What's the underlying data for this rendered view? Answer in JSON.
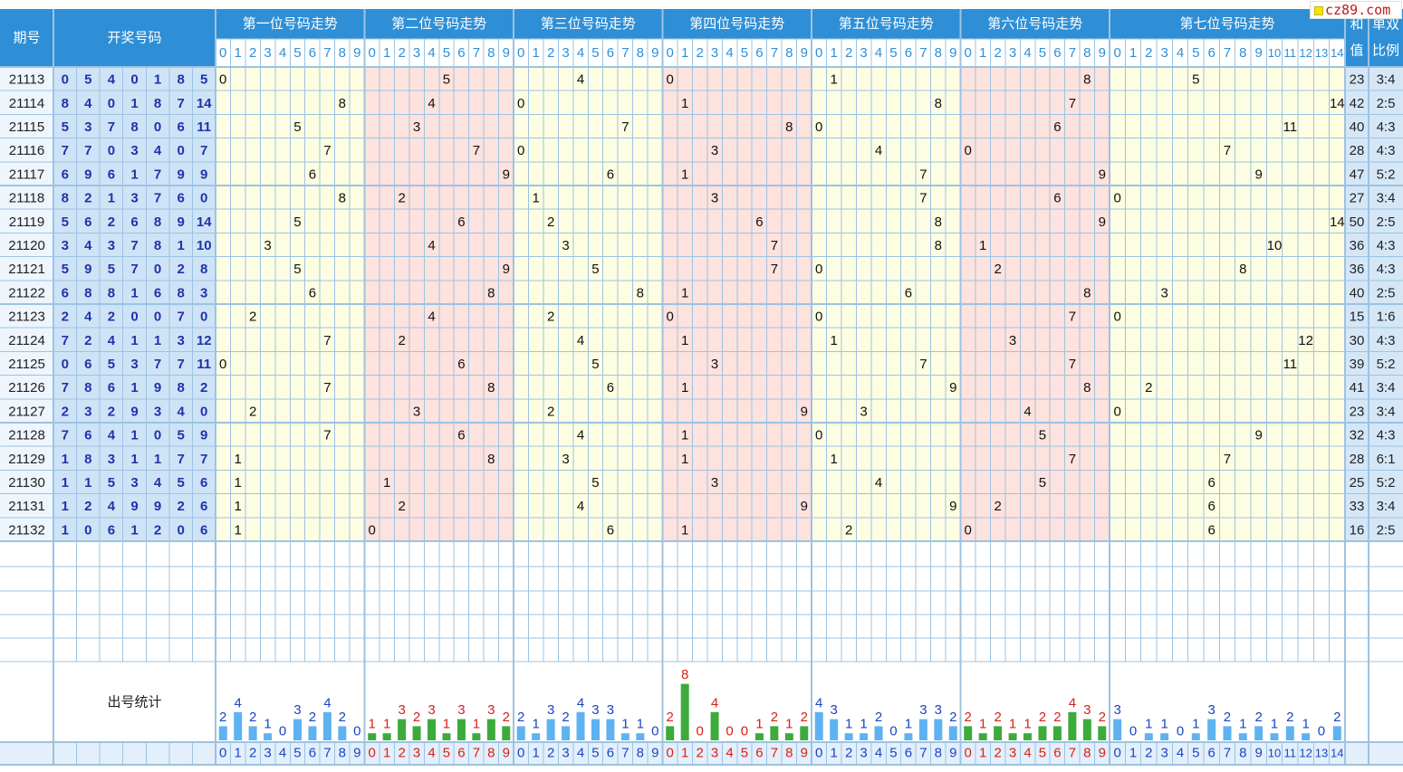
{
  "header": {
    "period": "期号",
    "numbers": "开奖号码",
    "sum": "和值",
    "ratio": "单双比例",
    "stats": "出号统计"
  },
  "chart_data": {
    "type": "table",
    "positions": [
      {
        "title": "第一位号码走势",
        "digits": 10
      },
      {
        "title": "第二位号码走势",
        "digits": 10
      },
      {
        "title": "第三位号码走势",
        "digits": 10
      },
      {
        "title": "第四位号码走势",
        "digits": 10
      },
      {
        "title": "第五位号码走势",
        "digits": 10
      },
      {
        "title": "第六位号码走势",
        "digits": 10
      },
      {
        "title": "第七位号码走势",
        "digits": 15
      }
    ],
    "rows": [
      {
        "period": "21113",
        "numbers": [
          0,
          5,
          4,
          0,
          1,
          8,
          5
        ],
        "sum": "23",
        "ratio": "3:4"
      },
      {
        "period": "21114",
        "numbers": [
          8,
          4,
          0,
          1,
          8,
          7,
          14
        ],
        "sum": "42",
        "ratio": "2:5"
      },
      {
        "period": "21115",
        "numbers": [
          5,
          3,
          7,
          8,
          0,
          6,
          11
        ],
        "sum": "40",
        "ratio": "4:3"
      },
      {
        "period": "21116",
        "numbers": [
          7,
          7,
          0,
          3,
          4,
          0,
          7
        ],
        "sum": "28",
        "ratio": "4:3"
      },
      {
        "period": "21117",
        "numbers": [
          6,
          9,
          6,
          1,
          7,
          9,
          9
        ],
        "sum": "47",
        "ratio": "5:2"
      },
      {
        "period": "21118",
        "numbers": [
          8,
          2,
          1,
          3,
          7,
          6,
          0
        ],
        "sum": "27",
        "ratio": "3:4"
      },
      {
        "period": "21119",
        "numbers": [
          5,
          6,
          2,
          6,
          8,
          9,
          14
        ],
        "sum": "50",
        "ratio": "2:5"
      },
      {
        "period": "21120",
        "numbers": [
          3,
          4,
          3,
          7,
          8,
          1,
          10
        ],
        "sum": "36",
        "ratio": "4:3"
      },
      {
        "period": "21121",
        "numbers": [
          5,
          9,
          5,
          7,
          0,
          2,
          8
        ],
        "sum": "36",
        "ratio": "4:3"
      },
      {
        "period": "21122",
        "numbers": [
          6,
          8,
          8,
          1,
          6,
          8,
          3
        ],
        "sum": "40",
        "ratio": "2:5"
      },
      {
        "period": "21123",
        "numbers": [
          2,
          4,
          2,
          0,
          0,
          7,
          0
        ],
        "sum": "15",
        "ratio": "1:6"
      },
      {
        "period": "21124",
        "numbers": [
          7,
          2,
          4,
          1,
          1,
          3,
          12
        ],
        "sum": "30",
        "ratio": "4:3"
      },
      {
        "period": "21125",
        "numbers": [
          0,
          6,
          5,
          3,
          7,
          7,
          11
        ],
        "sum": "39",
        "ratio": "5:2"
      },
      {
        "period": "21126",
        "numbers": [
          7,
          8,
          6,
          1,
          9,
          8,
          2
        ],
        "sum": "41",
        "ratio": "3:4"
      },
      {
        "period": "21127",
        "numbers": [
          2,
          3,
          2,
          9,
          3,
          4,
          0
        ],
        "sum": "23",
        "ratio": "3:4"
      },
      {
        "period": "21128",
        "numbers": [
          7,
          6,
          4,
          1,
          0,
          5,
          9
        ],
        "sum": "32",
        "ratio": "4:3"
      },
      {
        "period": "21129",
        "numbers": [
          1,
          8,
          3,
          1,
          1,
          7,
          7
        ],
        "sum": "28",
        "ratio": "6:1"
      },
      {
        "period": "21130",
        "numbers": [
          1,
          1,
          5,
          3,
          4,
          5,
          6
        ],
        "sum": "25",
        "ratio": "5:2"
      },
      {
        "period": "21131",
        "numbers": [
          1,
          2,
          4,
          9,
          9,
          2,
          6
        ],
        "sum": "33",
        "ratio": "3:4"
      },
      {
        "period": "21132",
        "numbers": [
          1,
          0,
          6,
          1,
          2,
          0,
          6
        ],
        "sum": "16",
        "ratio": "2:5"
      }
    ],
    "counts": [
      [
        2,
        4,
        2,
        1,
        0,
        3,
        2,
        4,
        2,
        0
      ],
      [
        1,
        1,
        3,
        2,
        3,
        1,
        3,
        1,
        3,
        2
      ],
      [
        2,
        1,
        3,
        2,
        4,
        3,
        3,
        1,
        1,
        0
      ],
      [
        2,
        8,
        0,
        4,
        0,
        0,
        1,
        2,
        1,
        2
      ],
      [
        4,
        3,
        1,
        1,
        2,
        0,
        1,
        3,
        3,
        2
      ],
      [
        2,
        1,
        2,
        1,
        1,
        2,
        2,
        4,
        3,
        2
      ],
      [
        3,
        0,
        1,
        1,
        0,
        1,
        3,
        2,
        1,
        2,
        1,
        2,
        1,
        0,
        2
      ]
    ]
  },
  "colors": {
    "yellow_zone": "#fdfde2",
    "pink_zone": "#fde2de",
    "grid": "#9cc3e2",
    "header_blue": "#2e8fd6",
    "number_blue": "#1f33a9",
    "bar_blue": "#5eb2f2",
    "bar_green": "#3cab3c",
    "count_red": "#d8201a",
    "count_blue": "#1a45c4",
    "left_bg": "#eef5fc",
    "right_bg": "#d5e7f7"
  },
  "watermark": "cz89.com"
}
